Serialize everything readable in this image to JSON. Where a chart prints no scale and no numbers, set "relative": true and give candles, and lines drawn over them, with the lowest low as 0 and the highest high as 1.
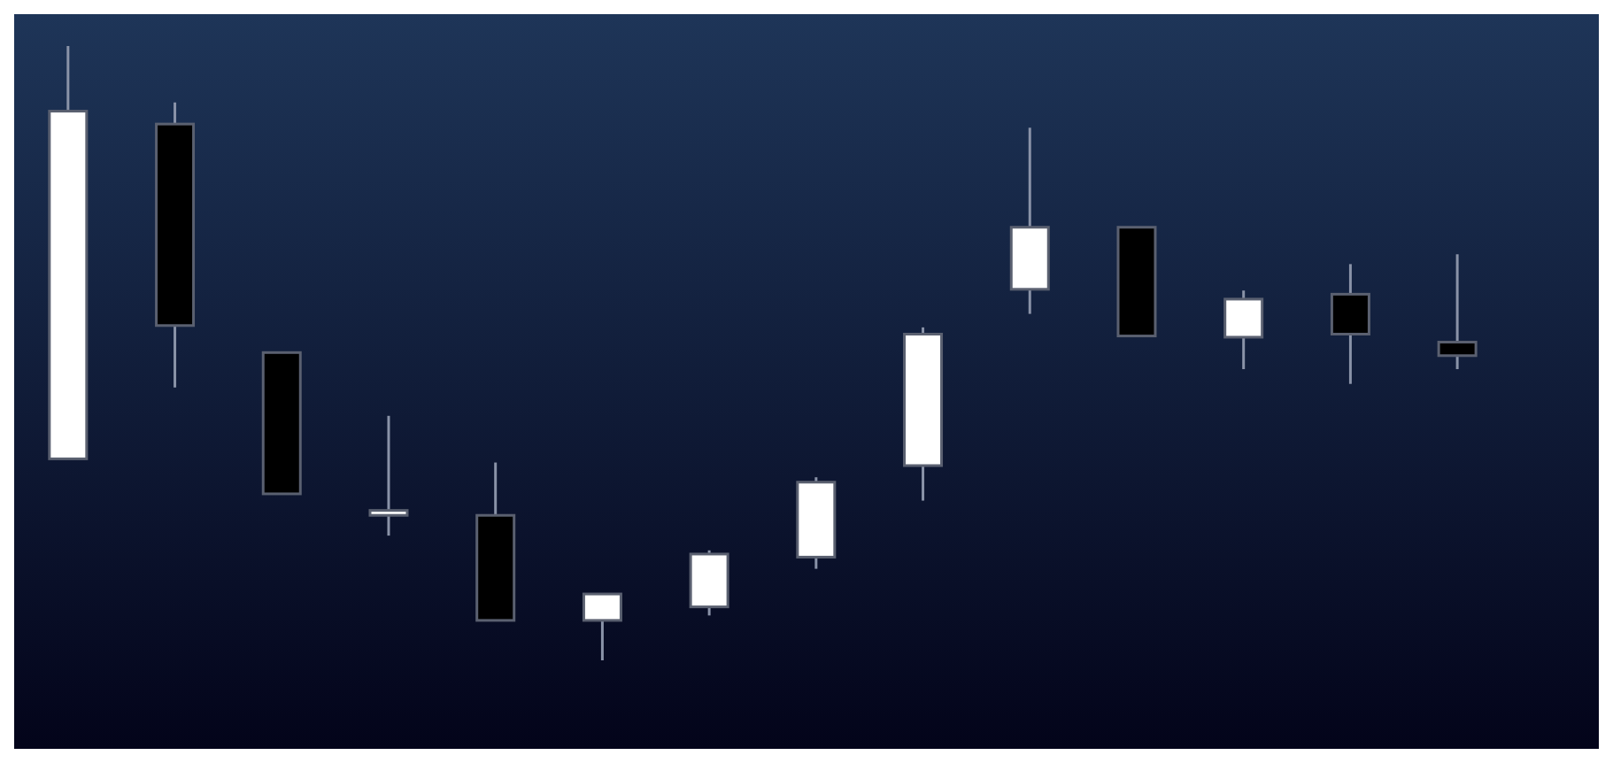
{
  "chart_data": {
    "type": "candlestick",
    "relative": true,
    "categories": [
      null,
      null,
      null,
      null,
      null,
      null,
      null,
      null,
      null,
      null,
      null,
      null,
      null,
      null
    ],
    "ohlc": [
      [
        0.328,
        1,
        0.328,
        0.894
      ],
      [
        0.873,
        0.908,
        0.444,
        0.545
      ],
      [
        0.501,
        0.501,
        0.271,
        0.271
      ],
      [
        0.236,
        0.398,
        0.203,
        0.244
      ],
      [
        0.236,
        0.322,
        0.065,
        0.065
      ],
      [
        0.065,
        0.108,
        0,
        0.108
      ],
      [
        0.087,
        0.179,
        0.073,
        0.173
      ],
      [
        0.168,
        0.298,
        0.149,
        0.29
      ],
      [
        0.317,
        0.542,
        0.26,
        0.531
      ],
      [
        0.604,
        0.867,
        0.564,
        0.705
      ],
      [
        0.705,
        0.705,
        0.528,
        0.528
      ],
      [
        0.526,
        0.602,
        0.474,
        0.588
      ],
      [
        0.596,
        0.645,
        0.45,
        0.531
      ],
      [
        0.518,
        0.661,
        0.474,
        0.496
      ]
    ],
    "colors": [
      "#ffffff",
      "#000000",
      "#000000",
      "#ffffff",
      "#000000",
      "#ffffff",
      "#ffffff",
      "#ffffff",
      "#ffffff",
      "#ffffff",
      "#000000",
      "#ffffff",
      "#000000",
      "#000000"
    ]
  }
}
